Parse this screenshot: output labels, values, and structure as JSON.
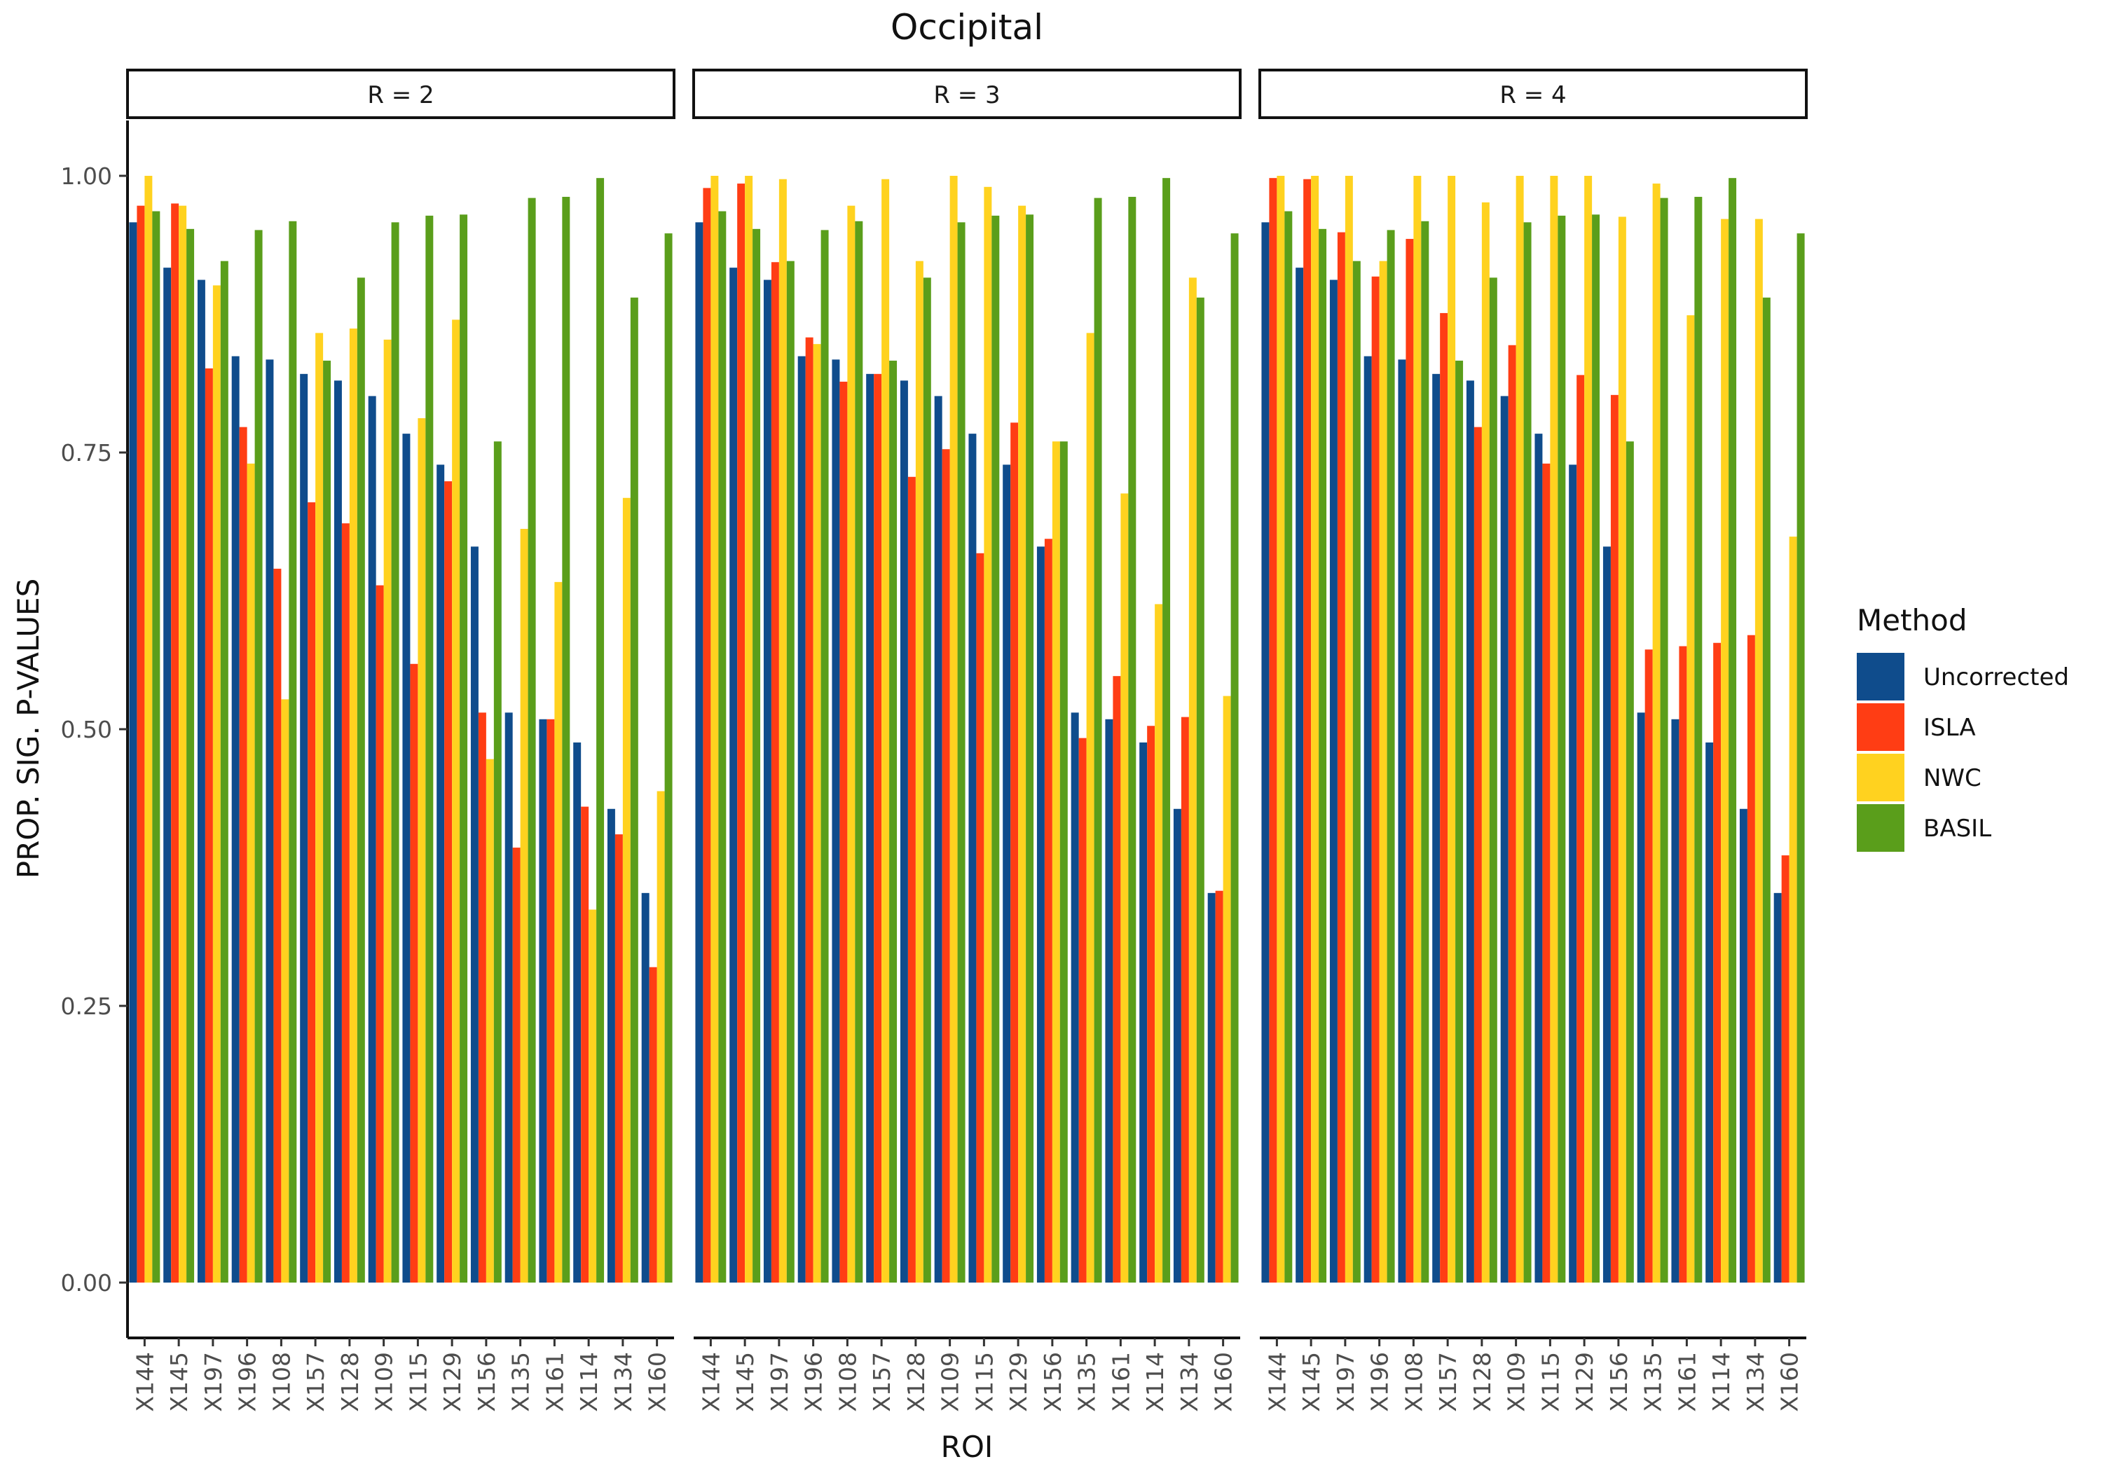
{
  "chart_data": {
    "type": "bar",
    "title": "Occipital",
    "xlabel": "ROI",
    "ylabel": "PROP. SIG. P-VALUES",
    "ylim": [
      -0.05,
      1.05
    ],
    "yticks": [
      0.0,
      0.25,
      0.5,
      0.75,
      1.0
    ],
    "ytick_labels": [
      "0.00",
      "0.25",
      "0.50",
      "0.75",
      "1.00"
    ],
    "categories": [
      "X144",
      "X145",
      "X197",
      "X196",
      "X108",
      "X157",
      "X128",
      "X109",
      "X115",
      "X129",
      "X156",
      "X135",
      "X161",
      "X114",
      "X134",
      "X160"
    ],
    "legend": {
      "title": "Method",
      "position": "right"
    },
    "series_colors": {
      "Uncorrected": "#0F4C8C",
      "ISLA": "#FF3D14",
      "NWC": "#FFD21F",
      "BASIL": "#5A9E1B"
    },
    "panels": [
      {
        "label": "R = 2",
        "series": [
          {
            "name": "Uncorrected",
            "values": [
              0.958,
              0.917,
              0.906,
              0.837,
              0.834,
              0.821,
              0.815,
              0.801,
              0.767,
              0.739,
              0.665,
              0.515,
              0.509,
              0.488,
              0.428,
              0.352
            ]
          },
          {
            "name": "ISLA",
            "values": [
              0.973,
              0.975,
              0.826,
              0.773,
              0.645,
              0.705,
              0.686,
              0.63,
              0.559,
              0.724,
              0.515,
              0.393,
              0.509,
              0.43,
              0.405,
              0.285
            ]
          },
          {
            "name": "NWC",
            "values": [
              1.0,
              0.973,
              0.901,
              0.74,
              0.527,
              0.858,
              0.862,
              0.852,
              0.781,
              0.87,
              0.473,
              0.681,
              0.633,
              0.337,
              0.709,
              0.444
            ]
          },
          {
            "name": "BASIL",
            "values": [
              0.968,
              0.952,
              0.923,
              0.951,
              0.959,
              0.833,
              0.908,
              0.958,
              0.964,
              0.965,
              0.76,
              0.98,
              0.981,
              0.998,
              0.89,
              0.948
            ]
          }
        ]
      },
      {
        "label": "R = 3",
        "series": [
          {
            "name": "Uncorrected",
            "values": [
              0.958,
              0.917,
              0.906,
              0.837,
              0.834,
              0.821,
              0.815,
              0.801,
              0.767,
              0.739,
              0.665,
              0.515,
              0.509,
              0.488,
              0.428,
              0.352
            ]
          },
          {
            "name": "ISLA",
            "values": [
              0.989,
              0.993,
              0.922,
              0.854,
              0.814,
              0.821,
              0.728,
              0.753,
              0.659,
              0.777,
              0.672,
              0.492,
              0.548,
              0.503,
              0.511,
              0.354
            ]
          },
          {
            "name": "NWC",
            "values": [
              1.0,
              1.0,
              0.997,
              0.848,
              0.973,
              0.997,
              0.923,
              1.0,
              0.99,
              0.973,
              0.76,
              0.858,
              0.713,
              0.613,
              0.908,
              0.53
            ]
          },
          {
            "name": "BASIL",
            "values": [
              0.968,
              0.952,
              0.923,
              0.951,
              0.959,
              0.833,
              0.908,
              0.958,
              0.964,
              0.965,
              0.76,
              0.98,
              0.981,
              0.998,
              0.89,
              0.948
            ]
          }
        ]
      },
      {
        "label": "R = 4",
        "series": [
          {
            "name": "Uncorrected",
            "values": [
              0.958,
              0.917,
              0.906,
              0.837,
              0.834,
              0.821,
              0.815,
              0.801,
              0.767,
              0.739,
              0.665,
              0.515,
              0.509,
              0.488,
              0.428,
              0.352
            ]
          },
          {
            "name": "ISLA",
            "values": [
              0.998,
              0.997,
              0.949,
              0.909,
              0.943,
              0.876,
              0.773,
              0.847,
              0.74,
              0.82,
              0.802,
              0.572,
              0.575,
              0.578,
              0.585,
              0.386
            ]
          },
          {
            "name": "NWC",
            "values": [
              1.0,
              1.0,
              1.0,
              0.923,
              1.0,
              1.0,
              0.976,
              1.0,
              1.0,
              1.0,
              0.963,
              0.993,
              0.874,
              0.961,
              0.961,
              0.674
            ]
          },
          {
            "name": "BASIL",
            "values": [
              0.968,
              0.952,
              0.923,
              0.951,
              0.959,
              0.833,
              0.908,
              0.958,
              0.964,
              0.965,
              0.76,
              0.98,
              0.981,
              0.998,
              0.89,
              0.948
            ]
          }
        ]
      }
    ]
  }
}
